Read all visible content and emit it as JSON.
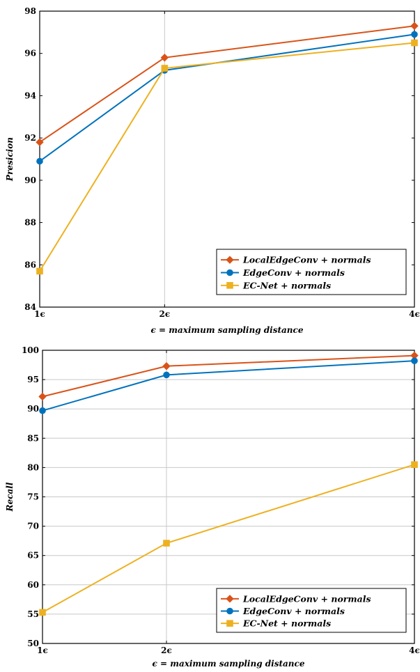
{
  "chart_data": [
    {
      "type": "line",
      "x": [
        1,
        2,
        4
      ],
      "xticklabels": [
        "1ϵ",
        "2ϵ",
        "4ϵ"
      ],
      "xlabel": "ϵ  =  maximum sampling distance",
      "ylabel": "Presicion",
      "ylim": [
        84,
        98
      ],
      "yticks": [
        84,
        86,
        88,
        90,
        92,
        94,
        96,
        98
      ],
      "grid": "vertical-at-2ϵ",
      "legend_position": "bottom-right",
      "series": [
        {
          "name": "LocalEdgeConv + normals",
          "values": [
            91.8,
            95.8,
            97.3
          ],
          "color": "#d95319",
          "marker": "diamond"
        },
        {
          "name": "EdgeConv + normals",
          "values": [
            90.9,
            95.2,
            96.9
          ],
          "color": "#0072bd",
          "marker": "circle"
        },
        {
          "name": "EC-Net + normals",
          "values": [
            85.7,
            95.3,
            96.5
          ],
          "color": "#edb120",
          "marker": "square"
        }
      ]
    },
    {
      "type": "line",
      "x": [
        1,
        2,
        4
      ],
      "xticklabels": [
        "1ϵ",
        "2ϵ",
        "4ϵ"
      ],
      "xlabel": "ϵ  =  maximum sampling distance",
      "ylabel": "Recall",
      "ylim": [
        50,
        100
      ],
      "yticks": [
        50,
        55,
        60,
        65,
        70,
        75,
        80,
        85,
        90,
        95,
        100
      ],
      "grid": "horizontal-and-vertical-at-2ϵ",
      "legend_position": "bottom-right",
      "series": [
        {
          "name": "LocalEdgeConv + normals",
          "values": [
            92.1,
            97.3,
            99.1
          ],
          "color": "#d95319",
          "marker": "diamond"
        },
        {
          "name": "EdgeConv + normals",
          "values": [
            89.7,
            95.8,
            98.2
          ],
          "color": "#0072bd",
          "marker": "circle"
        },
        {
          "name": "EC-Net + normals",
          "values": [
            55.3,
            67.1,
            80.5
          ],
          "color": "#edb120",
          "marker": "square"
        }
      ]
    }
  ]
}
